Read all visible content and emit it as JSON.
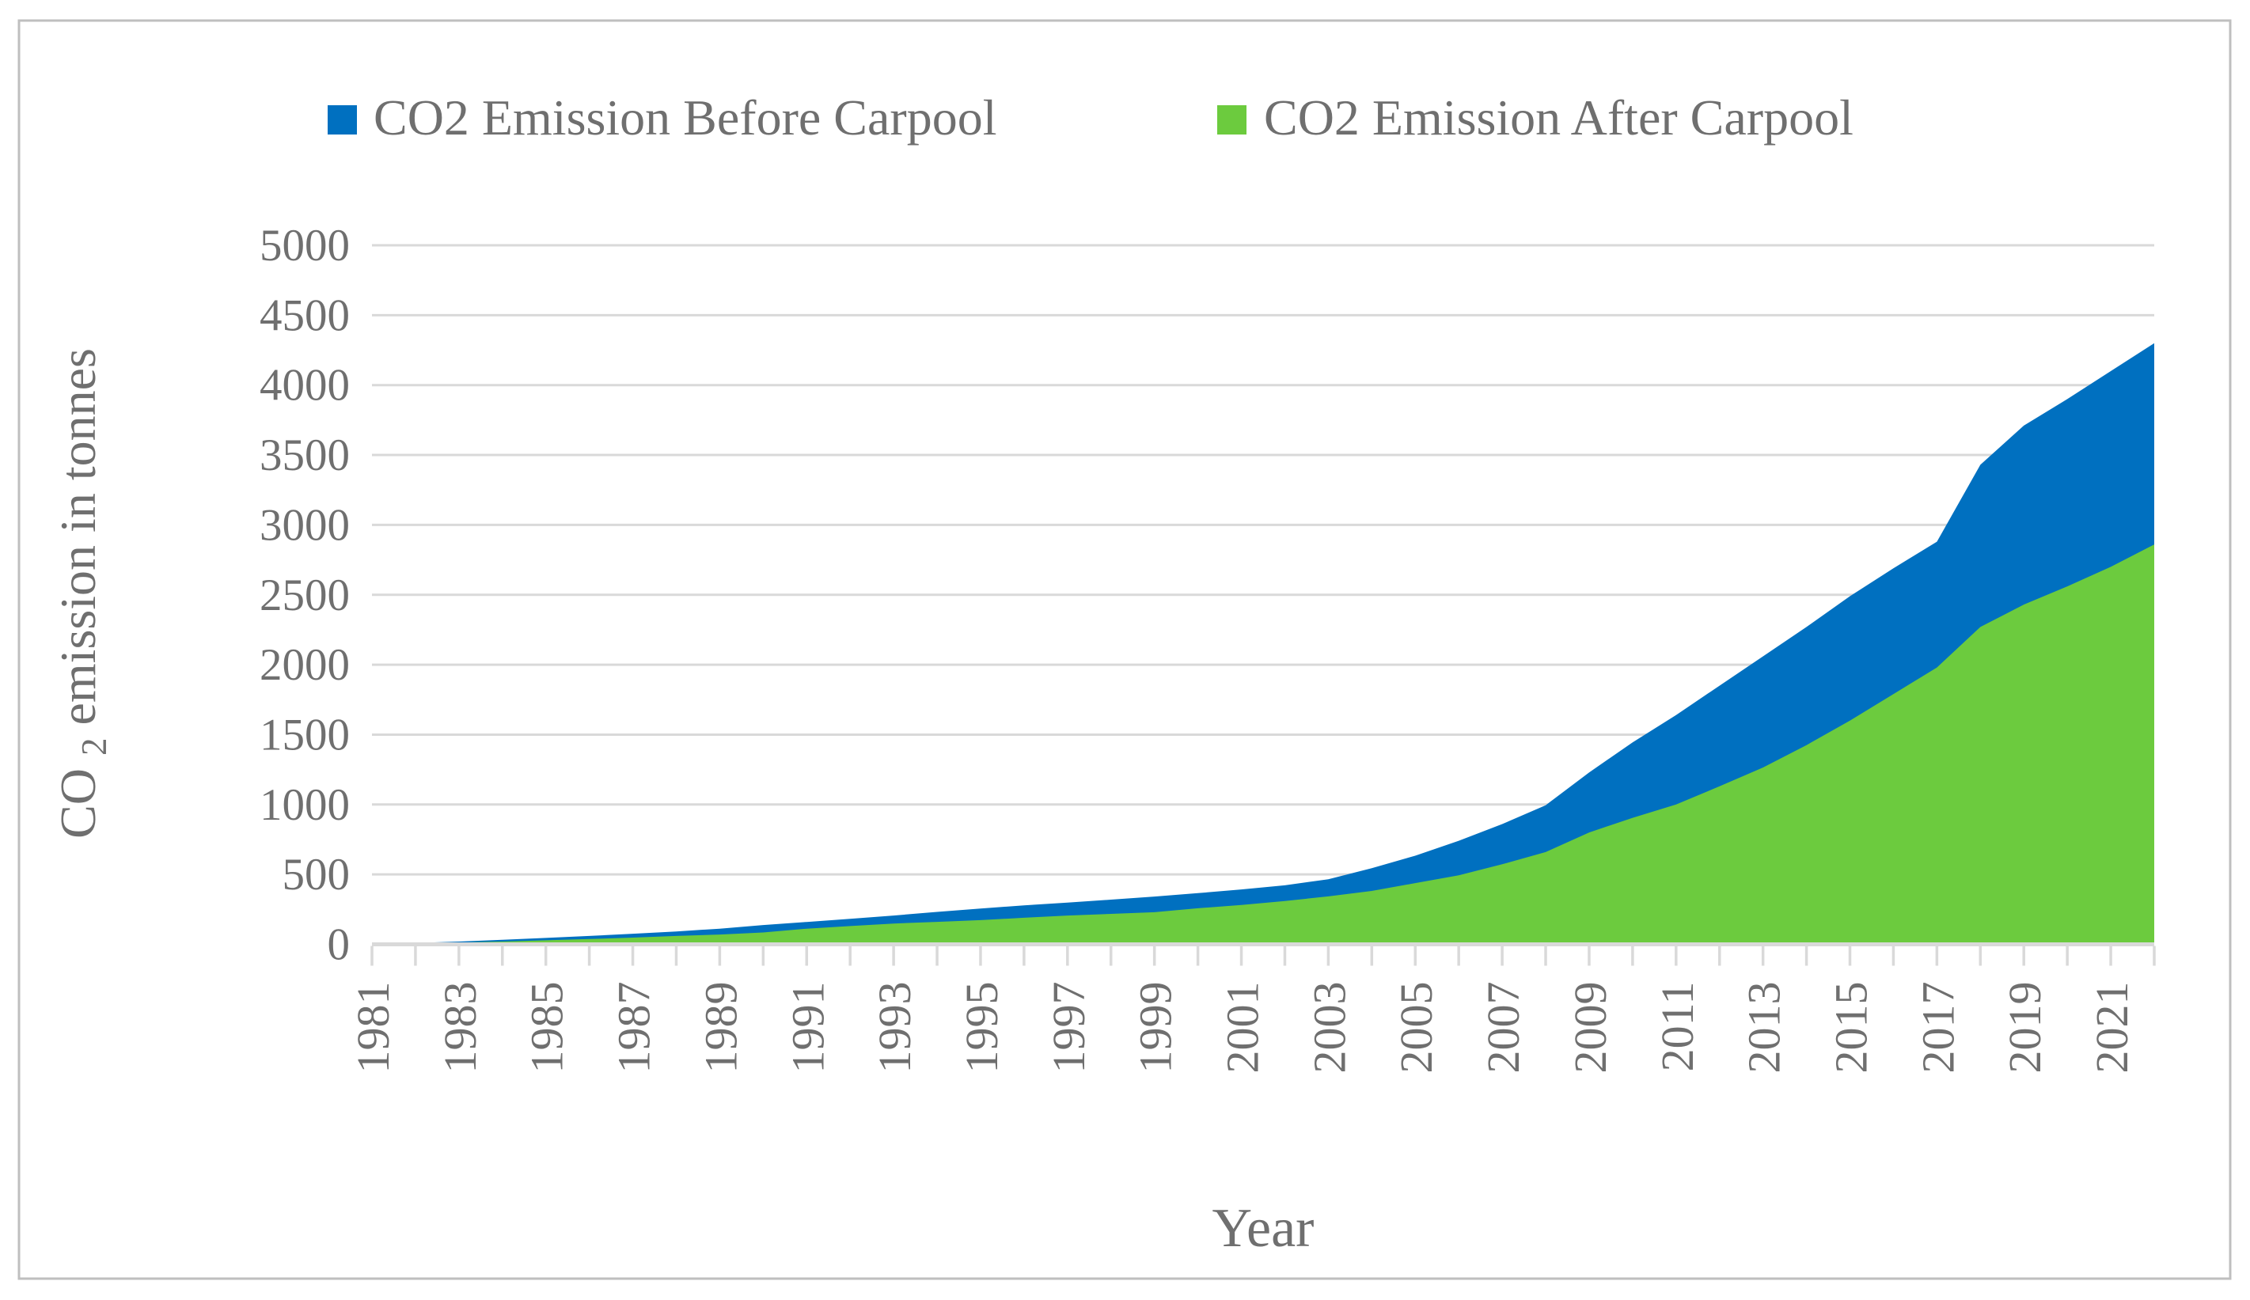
{
  "styles": {
    "text_color": "#6F6F6F",
    "gridline_color": "#D9D9D9",
    "border_color": "#BFBFBF",
    "bg_color": "#FFFFFF"
  },
  "axes": {
    "x_title": "Year",
    "y_title_prefix": "CO",
    "y_title_sub": "2",
    "y_title_suffix": " emission in tonnes"
  },
  "chart_data": {
    "type": "area",
    "title": "",
    "xlabel": "Year",
    "ylabel": "CO2 emission in tonnes",
    "legend_position": "top",
    "grid": true,
    "ylim": [
      0,
      5000
    ],
    "ytick_step": 500,
    "y_tick_labels": [
      "0",
      "500",
      "1000",
      "1500",
      "2000",
      "2500",
      "3000",
      "3500",
      "4000",
      "4500",
      "5000"
    ],
    "x": [
      1981,
      1982,
      1983,
      1984,
      1985,
      1986,
      1987,
      1988,
      1989,
      1990,
      1991,
      1992,
      1993,
      1994,
      1995,
      1996,
      1997,
      1998,
      1999,
      2000,
      2001,
      2002,
      2003,
      2004,
      2005,
      2006,
      2007,
      2008,
      2009,
      2010,
      2011,
      2012,
      2013,
      2014,
      2015,
      2016,
      2017,
      2018,
      2019,
      2020,
      2021,
      2022
    ],
    "x_tick_labels": [
      "1981",
      "1983",
      "1985",
      "1987",
      "1989",
      "1991",
      "1993",
      "1995",
      "1997",
      "1999",
      "2001",
      "2003",
      "2005",
      "2007",
      "2009",
      "2011",
      "2013",
      "2015",
      "2017",
      "2019",
      "2021"
    ],
    "series": [
      {
        "name": "CO2 Emission Before Carpool",
        "color": "#0070C0",
        "values": [
          5,
          10,
          20,
          32,
          46,
          60,
          76,
          92,
          112,
          138,
          160,
          183,
          206,
          232,
          256,
          279,
          298,
          320,
          342,
          366,
          393,
          422,
          466,
          545,
          634,
          741,
          860,
          995,
          1230,
          1445,
          1640,
          1850,
          2060,
          2270,
          2490,
          2690,
          2880,
          3430,
          3710,
          3900,
          4100,
          4300
        ]
      },
      {
        "name": "CO2 Emission After Carpool",
        "color": "#6CCB3E",
        "values": [
          3,
          6,
          13,
          20,
          29,
          38,
          48,
          60,
          70,
          85,
          112,
          131,
          149,
          161,
          173,
          190,
          206,
          218,
          230,
          258,
          281,
          310,
          343,
          382,
          438,
          494,
          573,
          660,
          800,
          905,
          1000,
          1130,
          1265,
          1425,
          1600,
          1790,
          1980,
          2270,
          2430,
          2560,
          2700,
          2860
        ]
      }
    ]
  }
}
